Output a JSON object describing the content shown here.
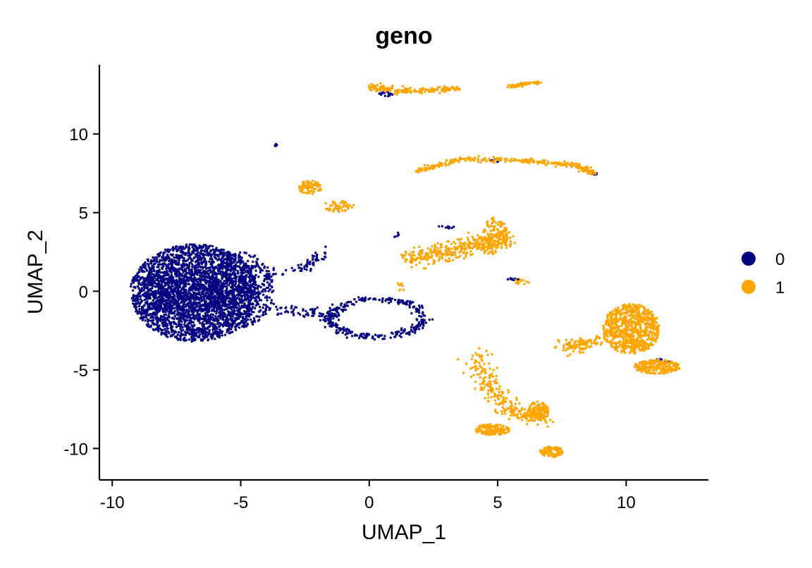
{
  "chart_data": {
    "type": "scatter",
    "title": "geno",
    "xlabel": "UMAP_1",
    "ylabel": "UMAP_2",
    "xlim": [
      -10.5,
      13.2
    ],
    "ylim": [
      -12.0,
      14.4
    ],
    "xticks": [
      -10,
      -5,
      0,
      5,
      10
    ],
    "xtick_labels": [
      "-10",
      "-5",
      "0",
      "5",
      "10"
    ],
    "yticks": [
      -10,
      -5,
      0,
      5,
      10
    ],
    "ytick_labels": [
      "-10",
      "-5",
      "0",
      "5",
      "10"
    ],
    "grid": false,
    "legend": {
      "position": "right",
      "title": ""
    },
    "colors": {
      "0": "#000080",
      "1": "#FFA500"
    },
    "series": [
      {
        "name": "0",
        "color": "#000080",
        "clusters": [
          {
            "shape": "ellipse",
            "cx": -6.8,
            "cy": -0.1,
            "rx": 2.5,
            "ry": 3.1,
            "n": 2600
          },
          {
            "shape": "ellipse",
            "cx": -5.0,
            "cy": 0.1,
            "rx": 1.3,
            "ry": 2.4,
            "n": 500
          },
          {
            "shape": "ellipse",
            "cx": -7.2,
            "cy": 0.0,
            "rx": 1.6,
            "ry": 1.5,
            "n": 500
          },
          {
            "shape": "ring",
            "cx": 0.3,
            "cy": -1.7,
            "rx": 1.8,
            "ry": 1.2,
            "n": 320
          },
          {
            "shape": "line",
            "points": [
              [
                -4.2,
                0.9
              ],
              [
                -2.5,
                1.5
              ],
              [
                -1.8,
                2.4
              ]
            ],
            "spread": 0.35,
            "n": 60
          },
          {
            "shape": "line",
            "points": [
              [
                -4.5,
                -1.0
              ],
              [
                -2.5,
                -1.3
              ],
              [
                -1.5,
                -1.5
              ]
            ],
            "spread": 0.35,
            "n": 60
          },
          {
            "shape": "ellipse",
            "cx": -3.6,
            "cy": 9.3,
            "rx": 0.08,
            "ry": 0.08,
            "n": 5
          },
          {
            "shape": "ellipse",
            "cx": 5.6,
            "cy": 0.8,
            "rx": 0.25,
            "ry": 0.1,
            "n": 12
          },
          {
            "shape": "ellipse",
            "cx": 3.0,
            "cy": 4.1,
            "rx": 0.3,
            "ry": 0.12,
            "n": 10
          },
          {
            "shape": "ellipse",
            "cx": 0.7,
            "cy": 12.6,
            "rx": 0.35,
            "ry": 0.25,
            "n": 18
          },
          {
            "shape": "ellipse",
            "cx": 11.3,
            "cy": -4.7,
            "rx": 0.5,
            "ry": 0.4,
            "n": 12
          },
          {
            "shape": "ellipse",
            "cx": 8.7,
            "cy": 7.5,
            "rx": 0.2,
            "ry": 0.1,
            "n": 6
          },
          {
            "shape": "ellipse",
            "cx": 4.8,
            "cy": 8.3,
            "rx": 0.3,
            "ry": 0.1,
            "n": 8
          },
          {
            "shape": "ellipse",
            "cx": 1.0,
            "cy": 3.6,
            "rx": 0.15,
            "ry": 0.2,
            "n": 6
          }
        ]
      },
      {
        "name": "1",
        "color": "#FFA500",
        "clusters": [
          {
            "shape": "line",
            "points": [
              [
                0.0,
                13.0
              ],
              [
                1.5,
                12.7
              ],
              [
                3.5,
                12.9
              ]
            ],
            "spread": 0.2,
            "n": 160
          },
          {
            "shape": "line",
            "points": [
              [
                5.4,
                13.0
              ],
              [
                6.6,
                13.3
              ]
            ],
            "spread": 0.12,
            "n": 60
          },
          {
            "shape": "line",
            "points": [
              [
                1.8,
                7.6
              ],
              [
                3.5,
                8.4
              ],
              [
                6.0,
                8.3
              ],
              [
                8.0,
                8.0
              ],
              [
                8.8,
                7.5
              ]
            ],
            "spread": 0.15,
            "n": 320
          },
          {
            "shape": "ellipse",
            "cx": -2.3,
            "cy": 6.6,
            "rx": 0.45,
            "ry": 0.45,
            "n": 80
          },
          {
            "shape": "ellipse",
            "cx": -1.2,
            "cy": 5.4,
            "rx": 0.6,
            "ry": 0.35,
            "n": 55
          },
          {
            "shape": "line",
            "points": [
              [
                1.5,
                2.0
              ],
              [
                3.0,
                2.6
              ],
              [
                4.5,
                3.0
              ],
              [
                5.3,
                3.4
              ]
            ],
            "spread": 0.55,
            "n": 380
          },
          {
            "shape": "ellipse",
            "cx": 4.9,
            "cy": 3.6,
            "rx": 0.55,
            "ry": 1.1,
            "n": 120
          },
          {
            "shape": "ellipse",
            "cx": 10.2,
            "cy": -2.4,
            "rx": 1.1,
            "ry": 1.6,
            "n": 760
          },
          {
            "shape": "ellipse",
            "cx": 11.2,
            "cy": -4.8,
            "rx": 0.9,
            "ry": 0.45,
            "n": 220
          },
          {
            "shape": "line",
            "points": [
              [
                7.5,
                -3.5
              ],
              [
                9.0,
                -3.2
              ]
            ],
            "spread": 0.45,
            "n": 110
          },
          {
            "shape": "line",
            "points": [
              [
                4.2,
                -4.2
              ],
              [
                4.7,
                -6.2
              ],
              [
                5.8,
                -7.8
              ],
              [
                6.8,
                -8.0
              ]
            ],
            "spread": 0.5,
            "n": 280
          },
          {
            "shape": "ellipse",
            "cx": 4.8,
            "cy": -8.8,
            "rx": 0.7,
            "ry": 0.35,
            "n": 160
          },
          {
            "shape": "ellipse",
            "cx": 7.1,
            "cy": -10.2,
            "rx": 0.45,
            "ry": 0.35,
            "n": 110
          },
          {
            "shape": "ellipse",
            "cx": 6.6,
            "cy": -7.6,
            "rx": 0.4,
            "ry": 0.6,
            "n": 100
          },
          {
            "shape": "ellipse",
            "cx": 5.9,
            "cy": 0.6,
            "rx": 0.35,
            "ry": 0.15,
            "n": 15
          },
          {
            "shape": "ellipse",
            "cx": 1.2,
            "cy": 0.3,
            "rx": 0.2,
            "ry": 0.3,
            "n": 8
          }
        ]
      }
    ]
  }
}
